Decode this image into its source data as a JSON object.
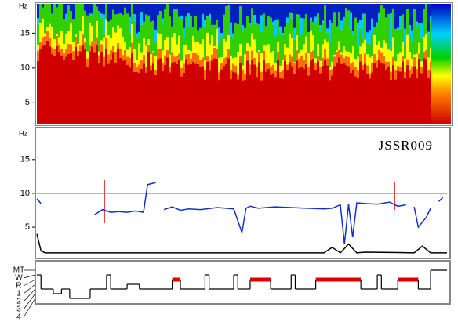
{
  "spectrogram": {
    "y_unit": "Hz",
    "ylim": [
      2,
      19.2
    ],
    "yticks": [
      5,
      10,
      15
    ]
  },
  "frequency": {
    "y_unit": "Hz",
    "label": "JSSR009",
    "ylim": [
      0.6,
      19.5
    ],
    "yticks": [
      5,
      10,
      15
    ],
    "reference_line": 10,
    "xlim": [
      0,
      100
    ],
    "x": [
      0,
      1,
      2,
      14,
      16,
      18,
      20,
      22,
      24,
      26,
      27,
      29,
      30,
      31,
      33,
      35,
      37,
      40,
      44,
      48,
      50,
      51,
      52,
      54,
      58,
      62,
      66,
      70,
      72,
      74,
      75,
      76,
      77,
      78,
      80,
      83,
      86,
      88,
      90,
      91,
      92,
      93,
      95,
      96,
      97,
      98,
      99
    ],
    "values": [
      9.2,
      8.5,
      null,
      6.8,
      7.6,
      7.2,
      7.3,
      7.2,
      7.4,
      7.2,
      11.3,
      11.6,
      null,
      7.6,
      8.0,
      7.5,
      7.7,
      7.6,
      7.9,
      7.7,
      4.2,
      7.8,
      8.1,
      7.8,
      8.0,
      7.9,
      7.8,
      7.7,
      7.8,
      8.3,
      2.5,
      8.4,
      3.5,
      8.6,
      8.5,
      8.4,
      8.7,
      8.1,
      8.3,
      null,
      8.0,
      5.0,
      6.5,
      7.8,
      null,
      8.8,
      9.4
    ],
    "baseline_x": [
      0,
      1,
      2,
      3,
      50,
      70,
      72,
      74,
      76,
      78,
      80,
      92,
      94,
      96,
      100
    ],
    "baseline_values": [
      4,
      1.5,
      1.2,
      1.2,
      1.2,
      1.2,
      2.0,
      1.2,
      2.5,
      1.2,
      1.3,
      1.2,
      2.2,
      1.2,
      1.2
    ]
  },
  "hypnogram": {
    "stages": [
      "MT",
      "W",
      "R",
      "1",
      "2",
      "3",
      "4"
    ],
    "xlim": [
      0,
      100
    ],
    "x": [
      0,
      1,
      4,
      6,
      8,
      13,
      17,
      18,
      22,
      25,
      33,
      35,
      41,
      42,
      48,
      49,
      52,
      57,
      62,
      63,
      68,
      79,
      83,
      84,
      88,
      93,
      96,
      100
    ],
    "stage": [
      "W",
      "2",
      "3",
      "2",
      "4",
      "2",
      "W",
      "2",
      "1",
      "2",
      "R",
      "2",
      "W",
      "2",
      "W",
      "2",
      "R",
      "2",
      "W",
      "2",
      "R",
      "2",
      "W",
      "2",
      "R",
      "2",
      "MT",
      "MT"
    ]
  }
}
